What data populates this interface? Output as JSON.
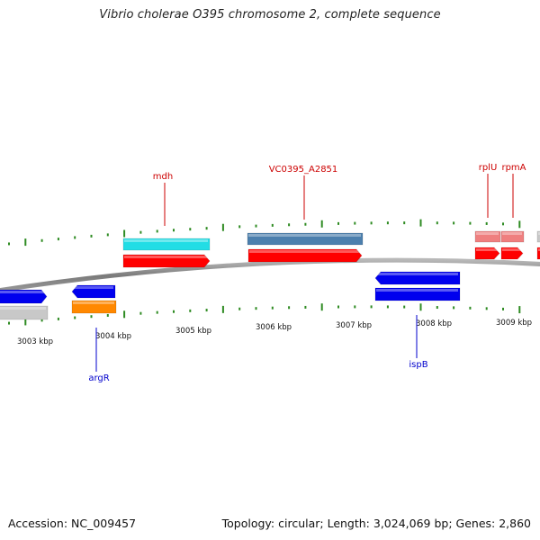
{
  "title": "Vibrio cholerae O395 chromosome 2, complete sequence",
  "footer": {
    "accession": "Accession: NC_009457",
    "topology": "Topology: circular; Length: 3,024,069 bp; Genes: 2,860"
  },
  "colors": {
    "backbone": "#8a8a8a",
    "tick": "#2e8b22",
    "top_label": "#cc0000",
    "bottom_label": "#0000cc"
  },
  "scale": {
    "ticks": [
      {
        "label": "3003 kbp"
      },
      {
        "label": "3004 kbp"
      },
      {
        "label": "3005 kbp"
      },
      {
        "label": "3006 kbp"
      },
      {
        "label": "3007 kbp"
      },
      {
        "label": "3008 kbp"
      },
      {
        "label": "3009 kbp"
      }
    ]
  },
  "gene_labels": [
    {
      "name": "mdh",
      "side": "top"
    },
    {
      "name": "VC0395_A2851",
      "side": "top"
    },
    {
      "name": "rplU",
      "side": "top"
    },
    {
      "name": "rpmA",
      "side": "top"
    },
    {
      "name": "argR",
      "side": "bottom"
    },
    {
      "name": "ispB",
      "side": "bottom"
    }
  ]
}
